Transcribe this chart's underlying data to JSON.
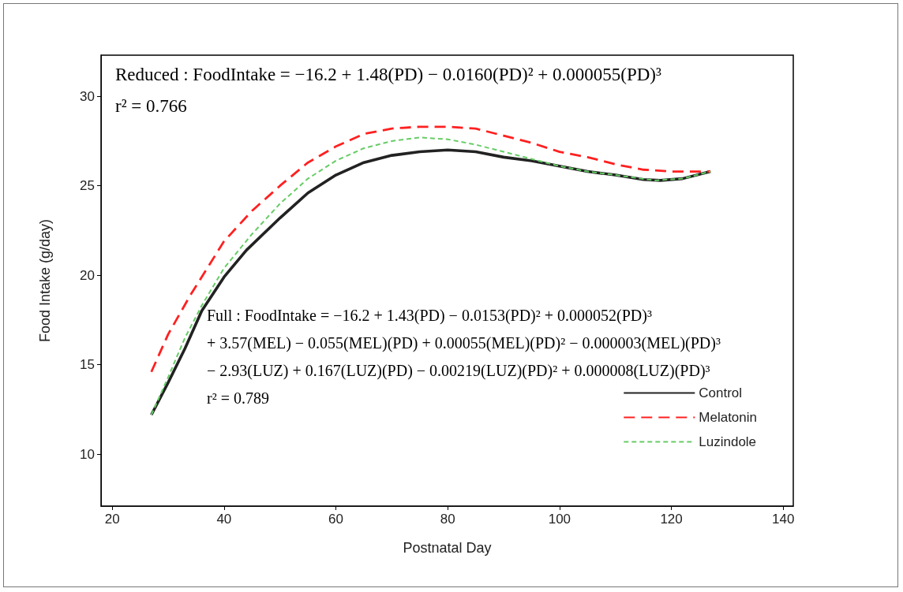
{
  "chart_data": {
    "type": "line",
    "xlabel": "Postnatal Day",
    "ylabel": "Food Intake (g/day)",
    "xlim": [
      18,
      141.8
    ],
    "ylim": [
      7.1,
      32.3
    ],
    "xticks": [
      20,
      40,
      60,
      80,
      100,
      120,
      140
    ],
    "yticks": [
      10,
      15,
      20,
      25,
      30
    ],
    "grid": false,
    "legend": "bottom right",
    "marker": "none",
    "series": [
      {
        "name": "Control",
        "color": "#222222",
        "line_style": "solid",
        "x": [
          27,
          30,
          33,
          36,
          40,
          44,
          50,
          55,
          60,
          65,
          70,
          75,
          80,
          85,
          90,
          95,
          100,
          105,
          110,
          115,
          118,
          122,
          127
        ],
        "values": [
          12.2,
          14.0,
          15.9,
          18.0,
          19.9,
          21.4,
          23.2,
          24.6,
          25.6,
          26.3,
          26.7,
          26.9,
          27.0,
          26.9,
          26.6,
          26.4,
          26.1,
          25.8,
          25.6,
          25.35,
          25.3,
          25.4,
          25.8
        ]
      },
      {
        "name": "Melatonin",
        "color": "#ff2020",
        "line_style": "dashed",
        "x": [
          27,
          30,
          34,
          40,
          45,
          50,
          55,
          60,
          65,
          70,
          75,
          80,
          85,
          90,
          95,
          100,
          105,
          110,
          115,
          120,
          127
        ],
        "values": [
          14.6,
          16.7,
          18.9,
          21.9,
          23.6,
          25.0,
          26.3,
          27.2,
          27.9,
          28.2,
          28.3,
          28.3,
          28.2,
          27.8,
          27.4,
          26.9,
          26.6,
          26.2,
          25.9,
          25.8,
          25.8
        ]
      },
      {
        "name": "Luzindole",
        "color": "#66cc66",
        "line_style": "dotted",
        "x": [
          27,
          30,
          33,
          36,
          40,
          45,
          50,
          55,
          60,
          65,
          70,
          75,
          80,
          85,
          90,
          95,
          100,
          105,
          110,
          117,
          122,
          127
        ],
        "values": [
          12.2,
          14.3,
          16.5,
          18.3,
          20.4,
          22.3,
          24.0,
          25.4,
          26.4,
          27.1,
          27.5,
          27.7,
          27.6,
          27.3,
          26.9,
          26.5,
          26.1,
          25.8,
          25.6,
          25.3,
          25.4,
          25.8
        ]
      }
    ],
    "annotations": [
      "Reduced : FoodIntake = −16.2 + 1.48(PD) − 0.0160(PD)² + 0.000055(PD)³\nr² = 0.766",
      "Full : FoodIntake = −16.2 + 1.43(PD) − 0.0153(PD)² + 0.000052(PD)³\n+ 3.57(MEL) − 0.055(MEL)(PD) + 0.00055(MEL)(PD)² − 0.000003(MEL)(PD)³\n− 2.93(LUZ) + 0.167(LUZ)(PD) − 0.00219(LUZ)(PD)² + 0.000008(LUZ)(PD)³\nr² = 0.789"
    ]
  }
}
